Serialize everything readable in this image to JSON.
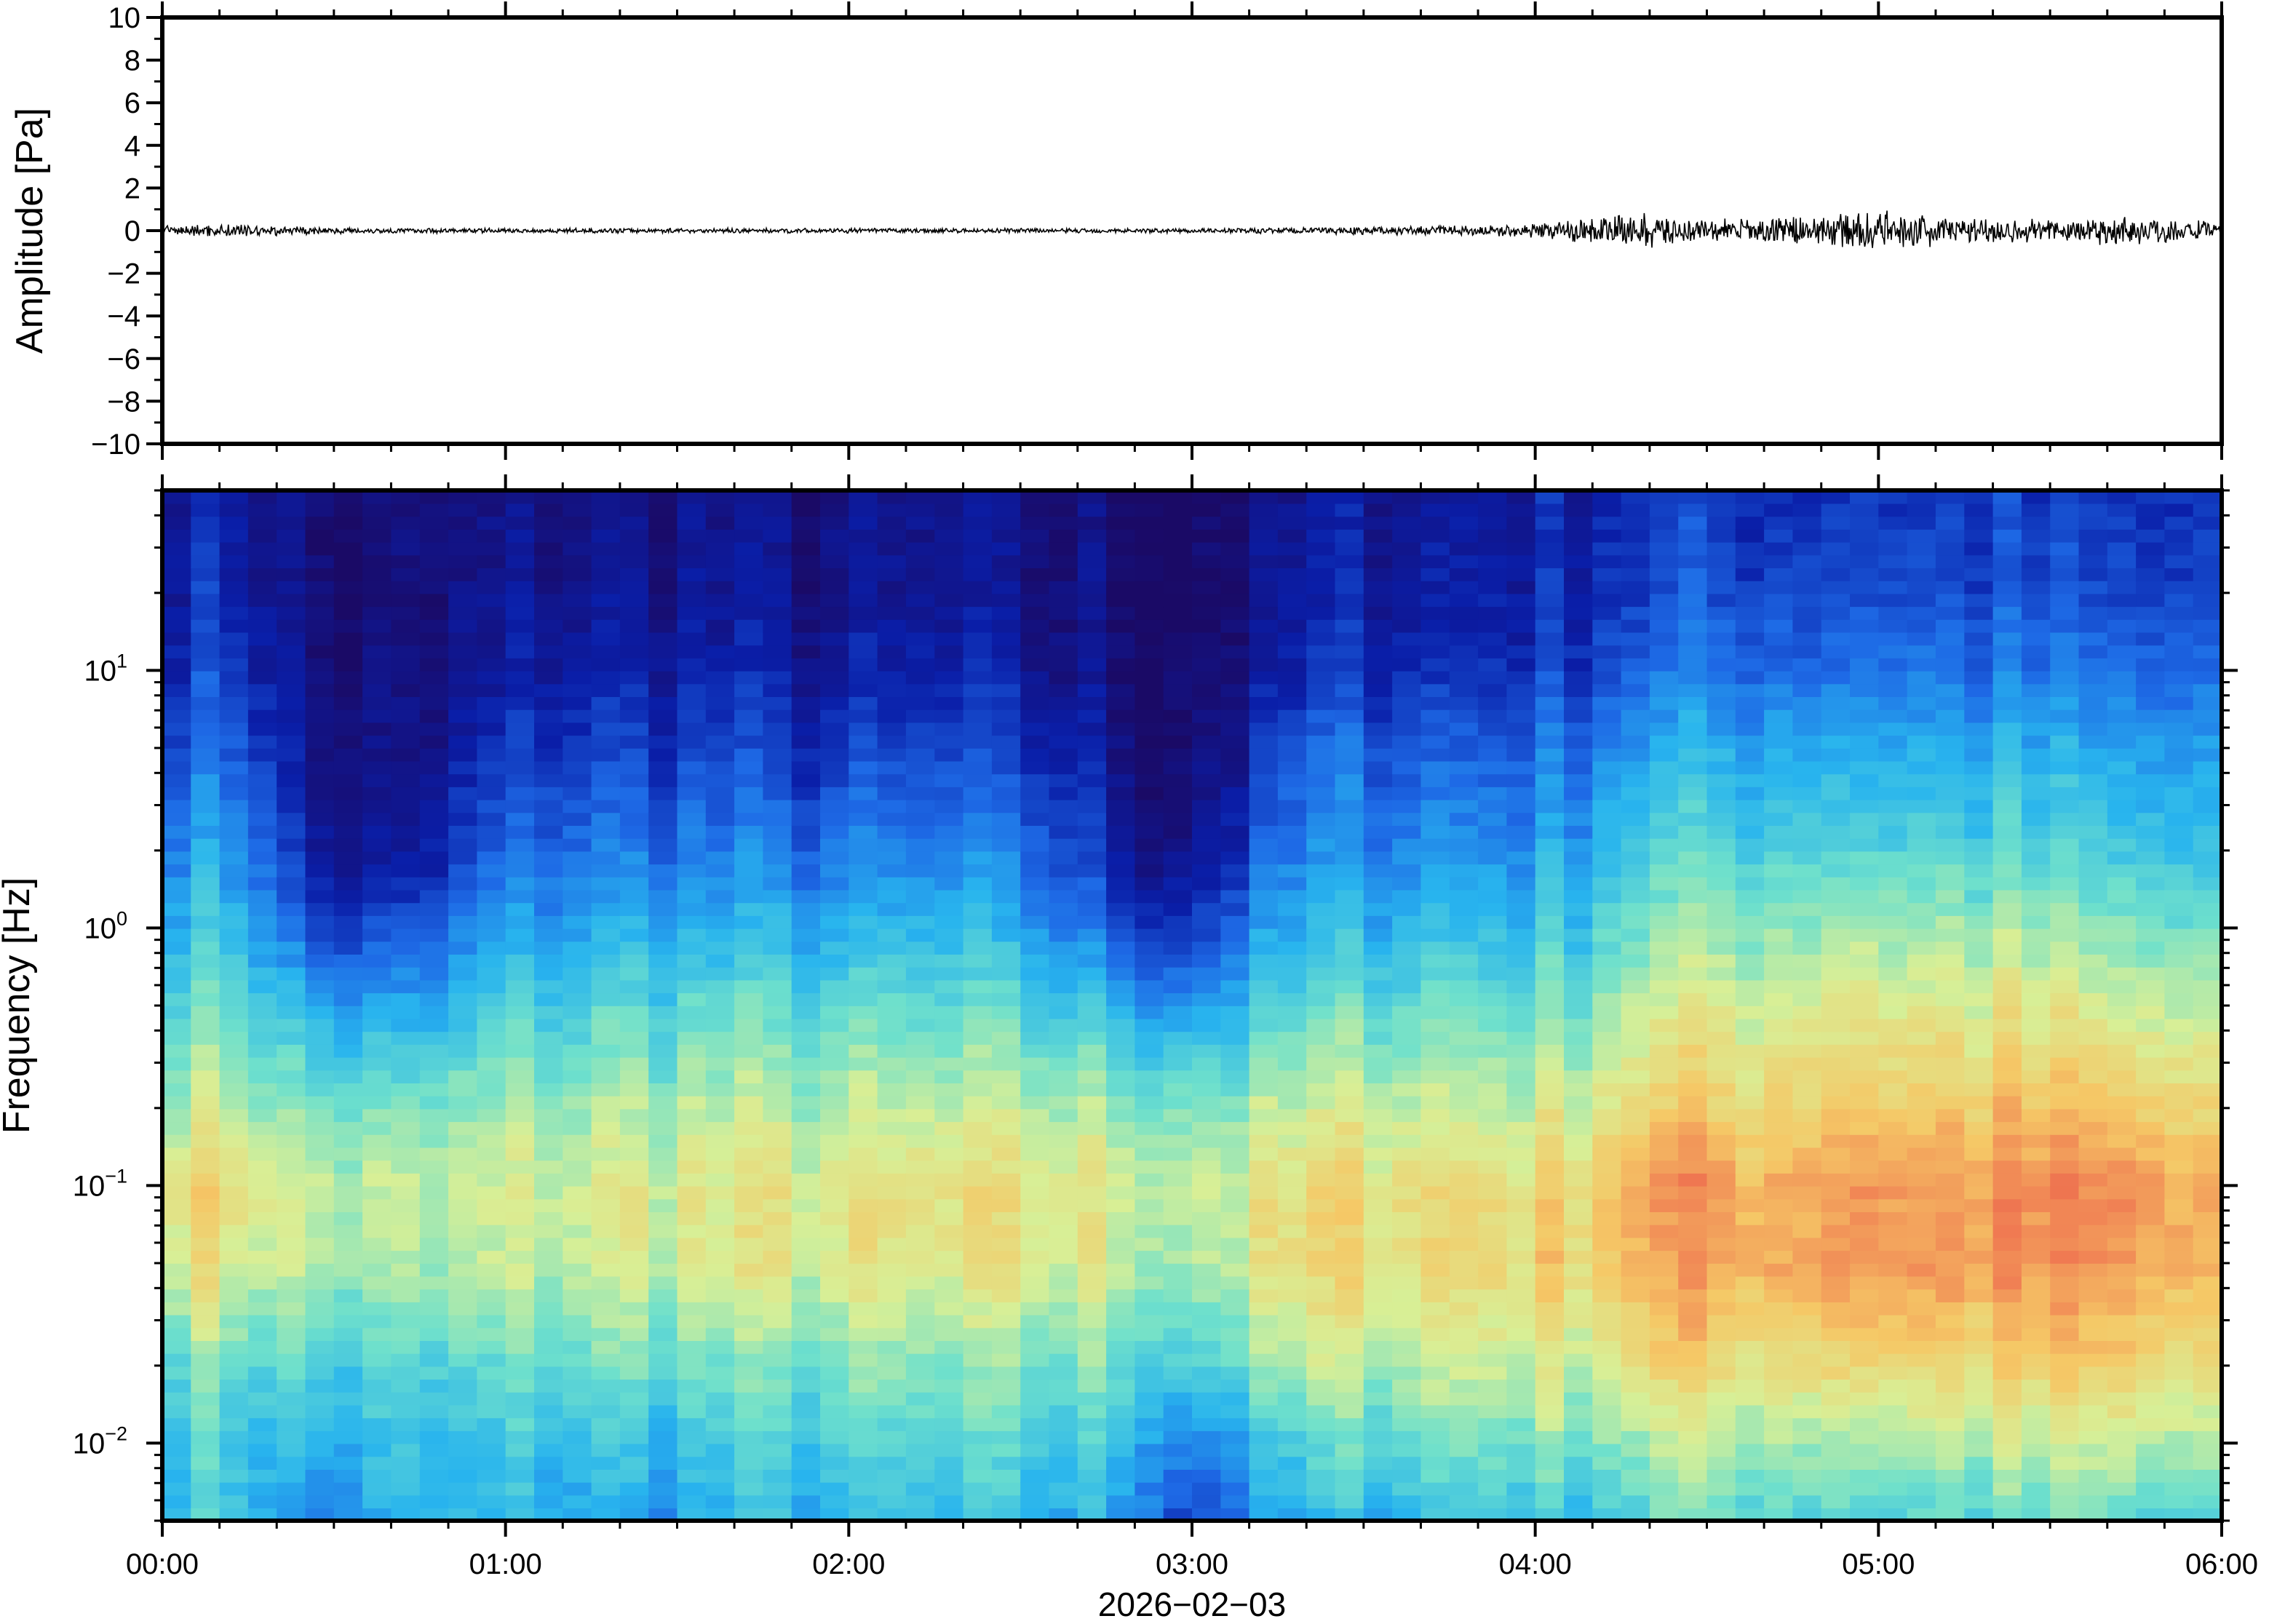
{
  "chart_data": [
    {
      "type": "line",
      "panel": "waveform",
      "title": "",
      "xlabel": "",
      "ylabel": "Amplitude [Pa]",
      "ylim": [
        -10,
        10
      ],
      "yticks": [
        10,
        8,
        6,
        4,
        2,
        0,
        -2,
        -4,
        -6,
        -8,
        -10
      ],
      "ytick_labels": [
        "10",
        "8",
        "6",
        "4",
        "2",
        "0",
        "−2",
        "−4",
        "−6",
        "−8",
        "−10"
      ],
      "x_range": [
        "00:00",
        "06:00"
      ],
      "series": [
        {
          "color": "#000000",
          "envelope_times": [
            "00:00",
            "00:15",
            "00:30",
            "01:00",
            "02:00",
            "03:00",
            "03:30",
            "03:50",
            "04:00",
            "04:10",
            "04:20",
            "04:30",
            "04:50",
            "05:00",
            "05:10",
            "05:30",
            "05:40",
            "05:50",
            "06:00"
          ],
          "envelope_amplitude_pa": [
            0.25,
            0.35,
            0.15,
            0.12,
            0.12,
            0.12,
            0.2,
            0.25,
            0.35,
            0.7,
            0.9,
            0.6,
            0.8,
            1.0,
            0.8,
            0.6,
            0.85,
            0.7,
            0.4
          ]
        }
      ]
    },
    {
      "type": "heatmap",
      "panel": "spectrogram",
      "title": "",
      "xlabel": "2026−02−03",
      "ylabel": "Frequency [Hz]",
      "yscale": "log",
      "ylim": [
        0.005,
        50
      ],
      "yticks": [
        {
          "base": "10",
          "exp": "1",
          "value": 10
        },
        {
          "base": "10",
          "exp": "0",
          "value": 1
        },
        {
          "base": "10",
          "exp": "−1",
          "value": 0.1
        },
        {
          "base": "10",
          "exp": "−2",
          "value": 0.01
        }
      ],
      "xticks": [
        "00:00",
        "01:00",
        "02:00",
        "03:00",
        "04:00",
        "05:00",
        "06:00"
      ],
      "colormap": [
        "#1a0a66",
        "#0a1ea8",
        "#1e6ae6",
        "#28b4ee",
        "#6ee0cc",
        "#d8ef96",
        "#f5c866",
        "#f07a52",
        "#d84040"
      ],
      "time_minutes": [
        0,
        15,
        25,
        35,
        45,
        55,
        65,
        80,
        95,
        110,
        125,
        140,
        155,
        165,
        170,
        180,
        190,
        200,
        215,
        230,
        245,
        255,
        265,
        280,
        295,
        310,
        325,
        340,
        360
      ],
      "freq_hz": [
        0.005,
        0.01,
        0.02,
        0.05,
        0.1,
        0.2,
        0.5,
        1,
        2,
        5,
        10,
        20,
        50
      ],
      "level": [
        [
          0.42,
          0.45,
          0.52,
          0.68,
          0.7,
          0.62,
          0.5,
          0.42,
          0.33,
          0.25,
          0.18,
          0.14,
          0.12
        ],
        [
          0.42,
          0.45,
          0.5,
          0.66,
          0.68,
          0.6,
          0.48,
          0.4,
          0.32,
          0.24,
          0.18,
          0.14,
          0.12
        ],
        [
          0.3,
          0.36,
          0.44,
          0.58,
          0.6,
          0.52,
          0.36,
          0.2,
          0.1,
          0.05,
          0.03,
          0.02,
          0.02
        ],
        [
          0.33,
          0.38,
          0.44,
          0.56,
          0.58,
          0.5,
          0.34,
          0.18,
          0.08,
          0.04,
          0.03,
          0.02,
          0.02
        ],
        [
          0.38,
          0.4,
          0.44,
          0.55,
          0.58,
          0.5,
          0.33,
          0.18,
          0.08,
          0.04,
          0.03,
          0.02,
          0.02
        ],
        [
          0.36,
          0.4,
          0.46,
          0.58,
          0.6,
          0.54,
          0.4,
          0.3,
          0.2,
          0.12,
          0.07,
          0.05,
          0.04
        ],
        [
          0.38,
          0.42,
          0.48,
          0.6,
          0.62,
          0.56,
          0.44,
          0.34,
          0.26,
          0.18,
          0.11,
          0.07,
          0.05
        ],
        [
          0.34,
          0.4,
          0.5,
          0.62,
          0.64,
          0.57,
          0.46,
          0.36,
          0.27,
          0.18,
          0.12,
          0.08,
          0.06
        ],
        [
          0.36,
          0.42,
          0.5,
          0.63,
          0.64,
          0.58,
          0.47,
          0.37,
          0.28,
          0.18,
          0.12,
          0.08,
          0.06
        ],
        [
          0.38,
          0.44,
          0.5,
          0.64,
          0.65,
          0.58,
          0.46,
          0.36,
          0.26,
          0.16,
          0.1,
          0.06,
          0.05
        ],
        [
          0.38,
          0.44,
          0.52,
          0.64,
          0.65,
          0.58,
          0.46,
          0.36,
          0.27,
          0.17,
          0.1,
          0.06,
          0.05
        ],
        [
          0.4,
          0.44,
          0.52,
          0.64,
          0.66,
          0.59,
          0.47,
          0.37,
          0.28,
          0.18,
          0.11,
          0.06,
          0.05
        ],
        [
          0.38,
          0.44,
          0.52,
          0.64,
          0.65,
          0.58,
          0.44,
          0.32,
          0.24,
          0.14,
          0.08,
          0.05,
          0.04
        ],
        [
          0.36,
          0.42,
          0.52,
          0.62,
          0.64,
          0.57,
          0.4,
          0.24,
          0.14,
          0.08,
          0.05,
          0.04,
          0.03
        ],
        [
          0.34,
          0.4,
          0.5,
          0.6,
          0.62,
          0.55,
          0.36,
          0.18,
          0.08,
          0.04,
          0.03,
          0.02,
          0.02
        ],
        [
          0.18,
          0.3,
          0.46,
          0.58,
          0.6,
          0.54,
          0.34,
          0.18,
          0.08,
          0.04,
          0.03,
          0.02,
          0.02
        ],
        [
          0.28,
          0.36,
          0.5,
          0.62,
          0.64,
          0.56,
          0.4,
          0.28,
          0.18,
          0.1,
          0.05,
          0.03,
          0.02
        ],
        [
          0.36,
          0.45,
          0.58,
          0.68,
          0.68,
          0.6,
          0.48,
          0.38,
          0.3,
          0.22,
          0.14,
          0.1,
          0.08
        ],
        [
          0.4,
          0.5,
          0.6,
          0.7,
          0.7,
          0.62,
          0.5,
          0.4,
          0.32,
          0.24,
          0.16,
          0.12,
          0.1
        ],
        [
          0.42,
          0.52,
          0.62,
          0.7,
          0.7,
          0.62,
          0.5,
          0.4,
          0.32,
          0.23,
          0.15,
          0.12,
          0.1
        ],
        [
          0.4,
          0.52,
          0.62,
          0.72,
          0.7,
          0.62,
          0.5,
          0.42,
          0.34,
          0.26,
          0.18,
          0.14,
          0.12
        ],
        [
          0.46,
          0.56,
          0.68,
          0.78,
          0.8,
          0.7,
          0.6,
          0.5,
          0.42,
          0.34,
          0.24,
          0.18,
          0.15
        ],
        [
          0.5,
          0.58,
          0.7,
          0.8,
          0.82,
          0.72,
          0.62,
          0.54,
          0.45,
          0.36,
          0.26,
          0.2,
          0.16
        ],
        [
          0.48,
          0.58,
          0.7,
          0.8,
          0.8,
          0.72,
          0.64,
          0.55,
          0.46,
          0.37,
          0.27,
          0.2,
          0.16
        ],
        [
          0.48,
          0.58,
          0.72,
          0.84,
          0.84,
          0.76,
          0.66,
          0.58,
          0.48,
          0.38,
          0.28,
          0.22,
          0.18
        ],
        [
          0.46,
          0.58,
          0.7,
          0.82,
          0.82,
          0.74,
          0.64,
          0.56,
          0.46,
          0.36,
          0.27,
          0.2,
          0.16
        ],
        [
          0.48,
          0.58,
          0.7,
          0.82,
          0.84,
          0.74,
          0.64,
          0.55,
          0.45,
          0.36,
          0.26,
          0.2,
          0.16
        ],
        [
          0.48,
          0.6,
          0.72,
          0.82,
          0.84,
          0.74,
          0.62,
          0.52,
          0.42,
          0.34,
          0.24,
          0.18,
          0.15
        ],
        [
          0.44,
          0.56,
          0.66,
          0.76,
          0.76,
          0.68,
          0.58,
          0.48,
          0.4,
          0.32,
          0.24,
          0.18,
          0.15
        ]
      ]
    }
  ]
}
